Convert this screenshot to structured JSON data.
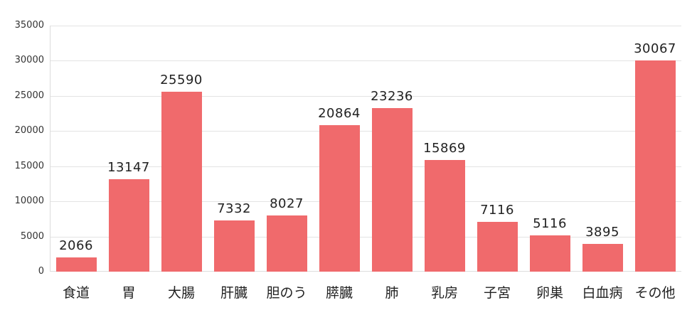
{
  "chart_data": {
    "type": "bar",
    "title": "",
    "xlabel": "",
    "ylabel": "",
    "ylim": [
      0,
      35000
    ],
    "yticks": [
      0,
      5000,
      10000,
      15000,
      20000,
      25000,
      30000,
      35000
    ],
    "grid": true,
    "legend": null,
    "bar_color": "#f06a6c",
    "categories": [
      "食道",
      "胃",
      "大腸",
      "肝臓",
      "胆のう",
      "膵臓",
      "肺",
      "乳房",
      "子宮",
      "卵巣",
      "白血病",
      "その他"
    ],
    "values": [
      2066,
      13147,
      25590,
      7332,
      8027,
      20864,
      23236,
      15869,
      7116,
      5116,
      3895,
      30067
    ],
    "data_labels": [
      "2066",
      "13147",
      "25590",
      "7332",
      "8027",
      "20864",
      "23236",
      "15869",
      "7116",
      "5116",
      "3895",
      "30067"
    ]
  },
  "axis": {
    "yticks": [
      "0",
      "5000",
      "10000",
      "15000",
      "20000",
      "25000",
      "30000",
      "35000"
    ]
  }
}
